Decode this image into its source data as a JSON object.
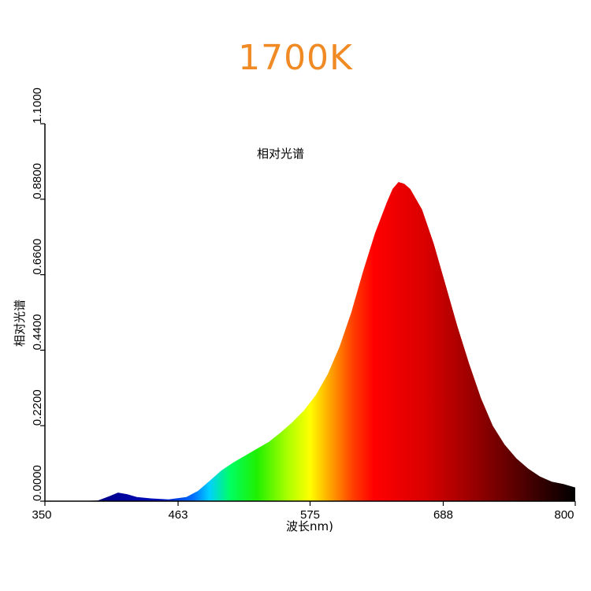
{
  "headline": "1700K",
  "chart_data": {
    "type": "area",
    "title": "相对光谱",
    "xlabel": "波长nm)",
    "ylabel": "相对光谱",
    "xlim": [
      350,
      800
    ],
    "ylim": [
      0,
      1.1
    ],
    "x_ticks": [
      350,
      463,
      575,
      688,
      800
    ],
    "x_tick_labels": [
      "350",
      "463",
      "575",
      "688",
      "800"
    ],
    "y_ticks": [
      0,
      0.22,
      0.44,
      0.66,
      0.88,
      1.1
    ],
    "y_tick_labels": [
      "0.0000",
      "0.2200",
      "0.4400",
      "0.6600",
      "0.8800",
      "1.1000"
    ],
    "grid": false,
    "fill": "spectral-rainbow",
    "series": [
      {
        "x": [
          350,
          380,
          395,
          405,
          412,
          420,
          428,
          440,
          455,
          470,
          480,
          490,
          500,
          510,
          520,
          530,
          540,
          550,
          560,
          570,
          580,
          590,
          600,
          610,
          620,
          630,
          640,
          645,
          650,
          655,
          660,
          670,
          680,
          690,
          700,
          710,
          720,
          730,
          740,
          750,
          760,
          770,
          780,
          790,
          800
        ],
        "y": [
          0,
          0,
          0.002,
          0.015,
          0.025,
          0.02,
          0.012,
          0.008,
          0.005,
          0.012,
          0.03,
          0.06,
          0.09,
          0.113,
          0.133,
          0.153,
          0.173,
          0.2,
          0.23,
          0.265,
          0.31,
          0.37,
          0.45,
          0.55,
          0.67,
          0.78,
          0.87,
          0.91,
          0.93,
          0.925,
          0.91,
          0.85,
          0.75,
          0.63,
          0.51,
          0.4,
          0.3,
          0.22,
          0.165,
          0.125,
          0.095,
          0.072,
          0.057,
          0.05,
          0.04
        ]
      }
    ]
  }
}
